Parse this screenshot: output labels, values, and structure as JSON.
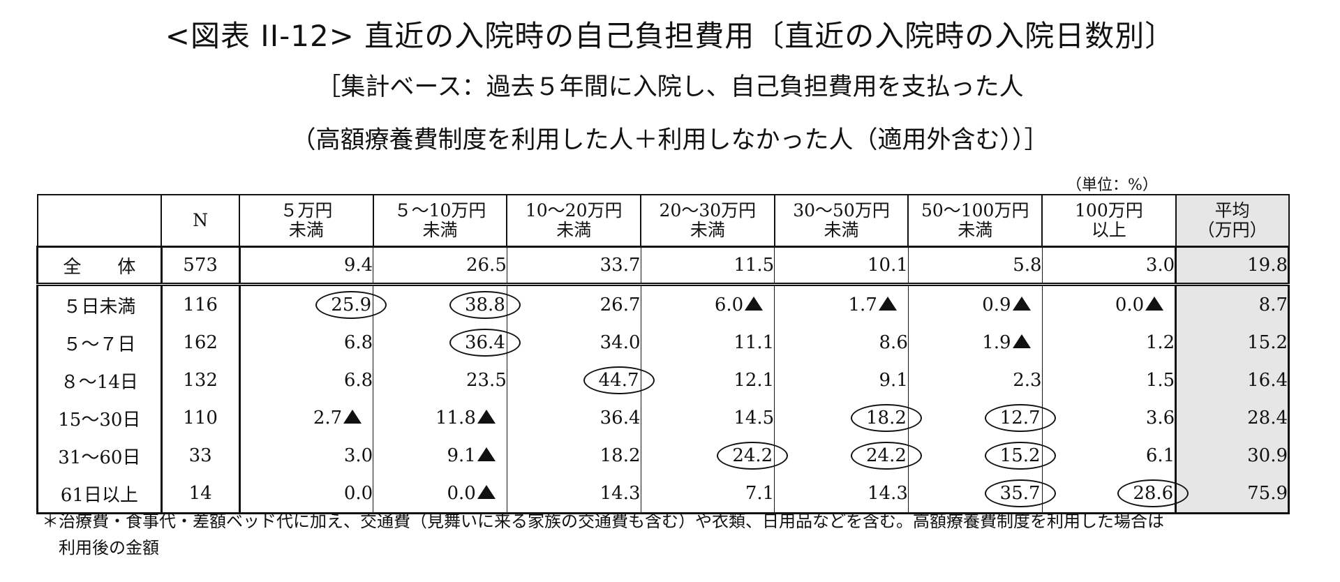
{
  "title": "<図表 II-12> 直近の入院時の自己負担費用〔直近の入院時の入院日数別〕",
  "subtitle1": "［集計ベース：過去５年間に入院し、自己負担費用を支払った人",
  "subtitle2": "（高額療養費制度を利用した人＋利用しなかった人（適用外含む））］",
  "unit": "（単位：%）",
  "table": {
    "columns": [
      {
        "key": "blank",
        "label1": "",
        "label2": ""
      },
      {
        "key": "n",
        "label1": "N",
        "label2": ""
      },
      {
        "key": "c1",
        "label1": "５万円",
        "label2": "未満"
      },
      {
        "key": "c2",
        "label1": "５～10万円",
        "label2": "未満"
      },
      {
        "key": "c3",
        "label1": "10～20万円",
        "label2": "未満"
      },
      {
        "key": "c4",
        "label1": "20～30万円",
        "label2": "未満"
      },
      {
        "key": "c5",
        "label1": "30～50万円",
        "label2": "未満"
      },
      {
        "key": "c6",
        "label1": "50～100万円",
        "label2": "未満"
      },
      {
        "key": "c7",
        "label1": "100万円",
        "label2": "以上"
      },
      {
        "key": "avg",
        "label1": "平均",
        "label2": "（万円）"
      }
    ],
    "rows": [
      {
        "label": "全　　体",
        "n": "573",
        "values": [
          "9.4",
          "26.5",
          "33.7",
          "11.5",
          "10.1",
          "5.8",
          "3.0"
        ],
        "avg": "19.8",
        "circled": [],
        "triangles": []
      },
      {
        "label": "５日未満",
        "n": "116",
        "values": [
          "25.9",
          "38.8",
          "26.7",
          "6.0",
          "1.7",
          "0.9",
          "0.0"
        ],
        "avg": "8.7",
        "circled": [
          0,
          1
        ],
        "triangles": [
          3,
          4,
          5,
          6
        ]
      },
      {
        "label": "５～７日",
        "n": "162",
        "values": [
          "6.8",
          "36.4",
          "34.0",
          "11.1",
          "8.6",
          "1.9",
          "1.2"
        ],
        "avg": "15.2",
        "circled": [
          1
        ],
        "triangles": [
          5
        ]
      },
      {
        "label": "８～14日",
        "n": "132",
        "values": [
          "6.8",
          "23.5",
          "44.7",
          "12.1",
          "9.1",
          "2.3",
          "1.5"
        ],
        "avg": "16.4",
        "circled": [
          2
        ],
        "triangles": []
      },
      {
        "label": "15～30日",
        "n": "110",
        "values": [
          "2.7",
          "11.8",
          "36.4",
          "14.5",
          "18.2",
          "12.7",
          "3.6"
        ],
        "avg": "28.4",
        "circled": [
          4,
          5
        ],
        "triangles": [
          0,
          1
        ]
      },
      {
        "label": "31～60日",
        "n": "33",
        "values": [
          "3.0",
          "9.1",
          "18.2",
          "24.2",
          "24.2",
          "15.2",
          "6.1"
        ],
        "avg": "30.9",
        "circled": [
          3,
          4,
          5
        ],
        "triangles": [
          1
        ]
      },
      {
        "label": "61日以上",
        "n": "14",
        "values": [
          "0.0",
          "0.0",
          "14.3",
          "7.1",
          "14.3",
          "35.7",
          "28.6"
        ],
        "avg": "75.9",
        "circled": [
          5,
          6
        ],
        "triangles": [
          1
        ]
      }
    ]
  },
  "note_line1": "＊治療費・食事代・差額ベッド代に加え、交通費（見舞いに来る家族の交通費も含む）や衣類、日用品などを含む。高額療養費制度を利用した場合は",
  "note_line2": "利用後の金額"
}
